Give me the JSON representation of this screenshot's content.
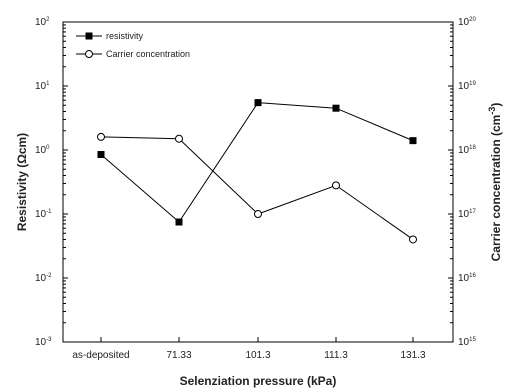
{
  "chart_data": {
    "type": "line",
    "categories": [
      "as-deposited",
      "71.33",
      "101.3",
      "111.3",
      "131.3"
    ],
    "xlabel": "Selenziation pressure (kPa)",
    "ylabel_left": "Resistivity (Ωcm)",
    "ylabel_right": "Carrier concentration (cm",
    "ylabel_right_sup": "-3",
    "ylabel_right_close": ")",
    "left_axis": {
      "scale": "log",
      "ylim": [
        0.001,
        100
      ],
      "ticks": [
        {
          "base": "10",
          "exp": "2"
        },
        {
          "base": "10",
          "exp": "1"
        },
        {
          "base": "10",
          "exp": "0"
        },
        {
          "base": "10",
          "exp": "-1"
        },
        {
          "base": "10",
          "exp": "-2"
        },
        {
          "base": "10",
          "exp": "-3"
        }
      ]
    },
    "right_axis": {
      "scale": "log",
      "ylim": [
        1000000000000000.0,
        1e+20
      ],
      "ticks": [
        {
          "base": "10",
          "exp": "20"
        },
        {
          "base": "10",
          "exp": "19"
        },
        {
          "base": "10",
          "exp": "18"
        },
        {
          "base": "10",
          "exp": "17"
        },
        {
          "base": "10",
          "exp": "16"
        },
        {
          "base": "10",
          "exp": "15"
        }
      ]
    },
    "series": [
      {
        "name": "resistivity",
        "axis": "left",
        "marker": "square-filled",
        "values": [
          0.85,
          0.075,
          5.5,
          4.5,
          1.4
        ]
      },
      {
        "name": "Carrier concentration",
        "axis": "right",
        "marker": "circle-open",
        "values": [
          1.6e+18,
          1.5e+18,
          1e+17,
          2.8e+17,
          4e+16
        ]
      }
    ],
    "legend_position": "top-left",
    "grid": false
  }
}
